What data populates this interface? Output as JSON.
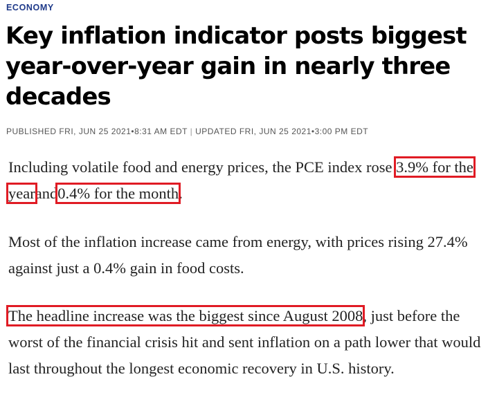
{
  "section": "ECONOMY",
  "headline": "Key inflation indicator posts biggest year-over-year gain in nearly three decades",
  "byline": {
    "published": "PUBLISHED FRI, JUN 25 2021•8:31 AM EDT",
    "separator": "|",
    "updated": "UPDATED FRI, JUN 25 2021•3:00 PM EDT"
  },
  "paragraphs": {
    "p1": {
      "lead": "Including volatile food and energy prices, the PCE index rose ",
      "highlight_year": "3.9% for the year",
      "connector": "and",
      "highlight_month": "0.4% for the month",
      "tail": "."
    },
    "p2": {
      "text": "Most of the inflation increase came from energy, with prices rising 27.4% against just a 0.4% gain in food costs."
    },
    "p3": {
      "highlight": "The headline increase was the biggest since August 2008",
      "tail": ", just before the worst of the financial crisis hit and sent inflation on a path lower that would last throughout the longest economic recovery in U.S. history."
    }
  },
  "colors": {
    "section_label": "#1f3a8a",
    "highlight_box": "#e01b24"
  }
}
